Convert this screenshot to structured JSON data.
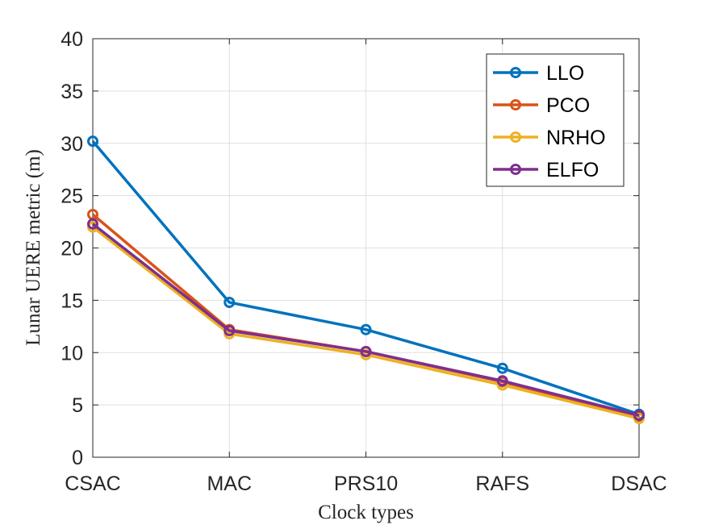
{
  "chart_data": {
    "type": "line",
    "title": "",
    "xlabel": "Clock types",
    "ylabel": "Lunar UERE metric (m)",
    "categories": [
      "CSAC",
      "MAC",
      "PRS10",
      "RAFS",
      "DSAC"
    ],
    "ylim": [
      0,
      40
    ],
    "yticks": [
      0,
      5,
      10,
      15,
      20,
      25,
      30,
      35,
      40
    ],
    "grid": true,
    "legend_position": "top-right",
    "series": [
      {
        "name": "LLO",
        "color": "#0072BD",
        "values": [
          30.2,
          14.8,
          12.2,
          8.5,
          4.1
        ]
      },
      {
        "name": "PCO",
        "color": "#D95319",
        "values": [
          23.2,
          12.2,
          10.1,
          7.2,
          3.9
        ]
      },
      {
        "name": "NRHO",
        "color": "#EDB120",
        "values": [
          22.0,
          11.8,
          9.8,
          6.9,
          3.7
        ]
      },
      {
        "name": "ELFO",
        "color": "#7E2F8E",
        "values": [
          22.3,
          12.1,
          10.1,
          7.3,
          4.0
        ]
      }
    ]
  }
}
